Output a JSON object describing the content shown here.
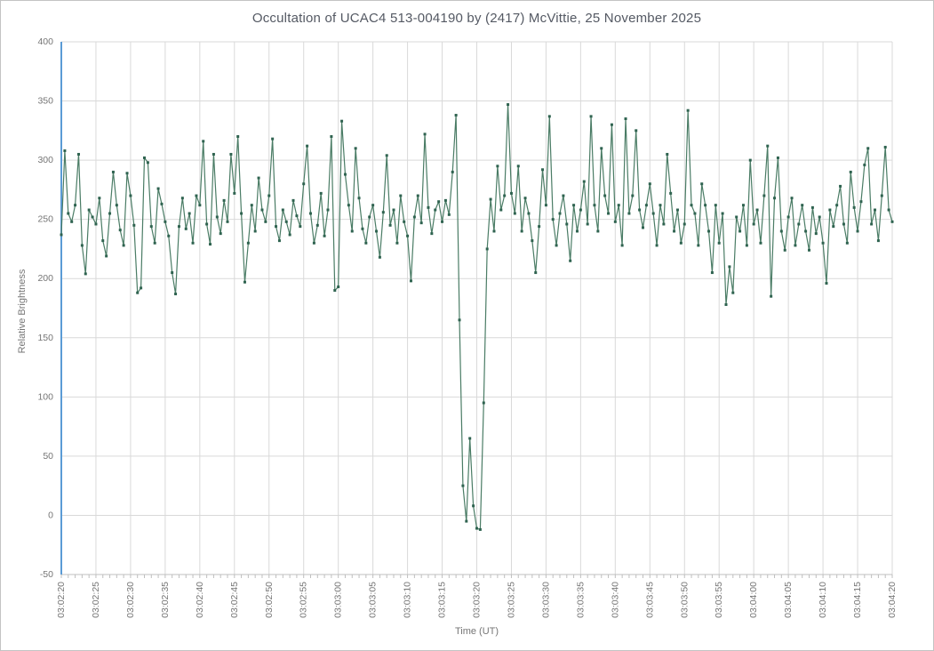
{
  "page": {
    "title": "Occultation of UCAC4 513-004190 by (2417) McVittie, 25 November 2025"
  },
  "chart_data": {
    "type": "line",
    "title": "Occultation of UCAC4 513-004190 by (2417) McVittie, 25 November 2025",
    "xlabel": "Time (UT)",
    "ylabel": "Relative Brightness",
    "ylim": [
      -50,
      400
    ],
    "y_ticks": [
      400,
      350,
      300,
      250,
      200,
      150,
      100,
      50,
      0,
      -50
    ],
    "x_start": "03:02:20",
    "x_end": "03:04:20",
    "x_total_seconds": 120,
    "x_step_seconds": 0.5,
    "x_tick_interval_seconds": 5,
    "x_minor_tick_seconds": 1,
    "x_ticks": [
      "03:02:20",
      "03:02:25",
      "03:02:30",
      "03:02:35",
      "03:02:40",
      "03:02:45",
      "03:02:50",
      "03:02:55",
      "03:03:00",
      "03:03:05",
      "03:03:10",
      "03:03:15",
      "03:03:20",
      "03:03:25",
      "03:03:30",
      "03:03:35",
      "03:03:40",
      "03:03:45",
      "03:03:50",
      "03:03:55",
      "03:04:00",
      "03:04:05",
      "03:04:10",
      "03:04:15",
      "03:04:20"
    ],
    "grid": true,
    "legend": "none",
    "series": [
      {
        "name": "Relative Brightness",
        "values": [
          237,
          308,
          255,
          248,
          262,
          305,
          228,
          204,
          258,
          252,
          246,
          268,
          232,
          219,
          255,
          290,
          262,
          241,
          228,
          289,
          270,
          245,
          188,
          192,
          302,
          298,
          244,
          230,
          276,
          263,
          248,
          236,
          205,
          187,
          244,
          268,
          242,
          255,
          230,
          270,
          262,
          316,
          246,
          229,
          305,
          252,
          238,
          266,
          248,
          305,
          272,
          320,
          255,
          197,
          230,
          262,
          240,
          285,
          258,
          248,
          270,
          318,
          244,
          232,
          258,
          248,
          237,
          266,
          253,
          244,
          280,
          312,
          255,
          230,
          245,
          272,
          236,
          258,
          320,
          190,
          193,
          333,
          288,
          262,
          240,
          310,
          268,
          242,
          230,
          252,
          262,
          240,
          218,
          256,
          304,
          245,
          258,
          230,
          270,
          248,
          236,
          198,
          252,
          270,
          247,
          322,
          260,
          238,
          258,
          265,
          248,
          266,
          254,
          290,
          338,
          165,
          25,
          -5,
          65,
          8,
          -11,
          -12,
          95,
          225,
          267,
          240,
          295,
          258,
          270,
          347,
          272,
          255,
          295,
          240,
          268,
          255,
          232,
          205,
          244,
          292,
          262,
          337,
          250,
          228,
          255,
          270,
          246,
          215,
          262,
          240,
          258,
          282,
          246,
          337,
          262,
          240,
          310,
          270,
          255,
          330,
          248,
          262,
          228,
          335,
          255,
          270,
          325,
          258,
          243,
          262,
          280,
          255,
          228,
          262,
          246,
          305,
          272,
          240,
          258,
          230,
          246,
          342,
          262,
          255,
          228,
          280,
          262,
          240,
          205,
          262,
          230,
          255,
          178,
          210,
          188,
          252,
          240,
          262,
          228,
          300,
          246,
          258,
          230,
          270,
          312,
          185,
          268,
          302,
          240,
          224,
          252,
          268,
          228,
          246,
          262,
          240,
          224,
          260,
          238,
          252,
          230,
          196,
          258,
          244,
          262,
          278,
          246,
          230,
          290,
          260,
          240,
          265,
          296,
          310,
          246,
          258,
          232,
          270,
          311,
          258,
          248
        ]
      }
    ],
    "colors": {
      "line": "#4a7c65",
      "marker": "#2f6350",
      "gridline": "#d9d9d9",
      "y_axis": "#5b9bd5",
      "x_axis": "#bfbfbf",
      "tick_text": "#757575",
      "title_text": "#545963",
      "background": "#ffffff",
      "border": "#c3c3c3"
    }
  }
}
